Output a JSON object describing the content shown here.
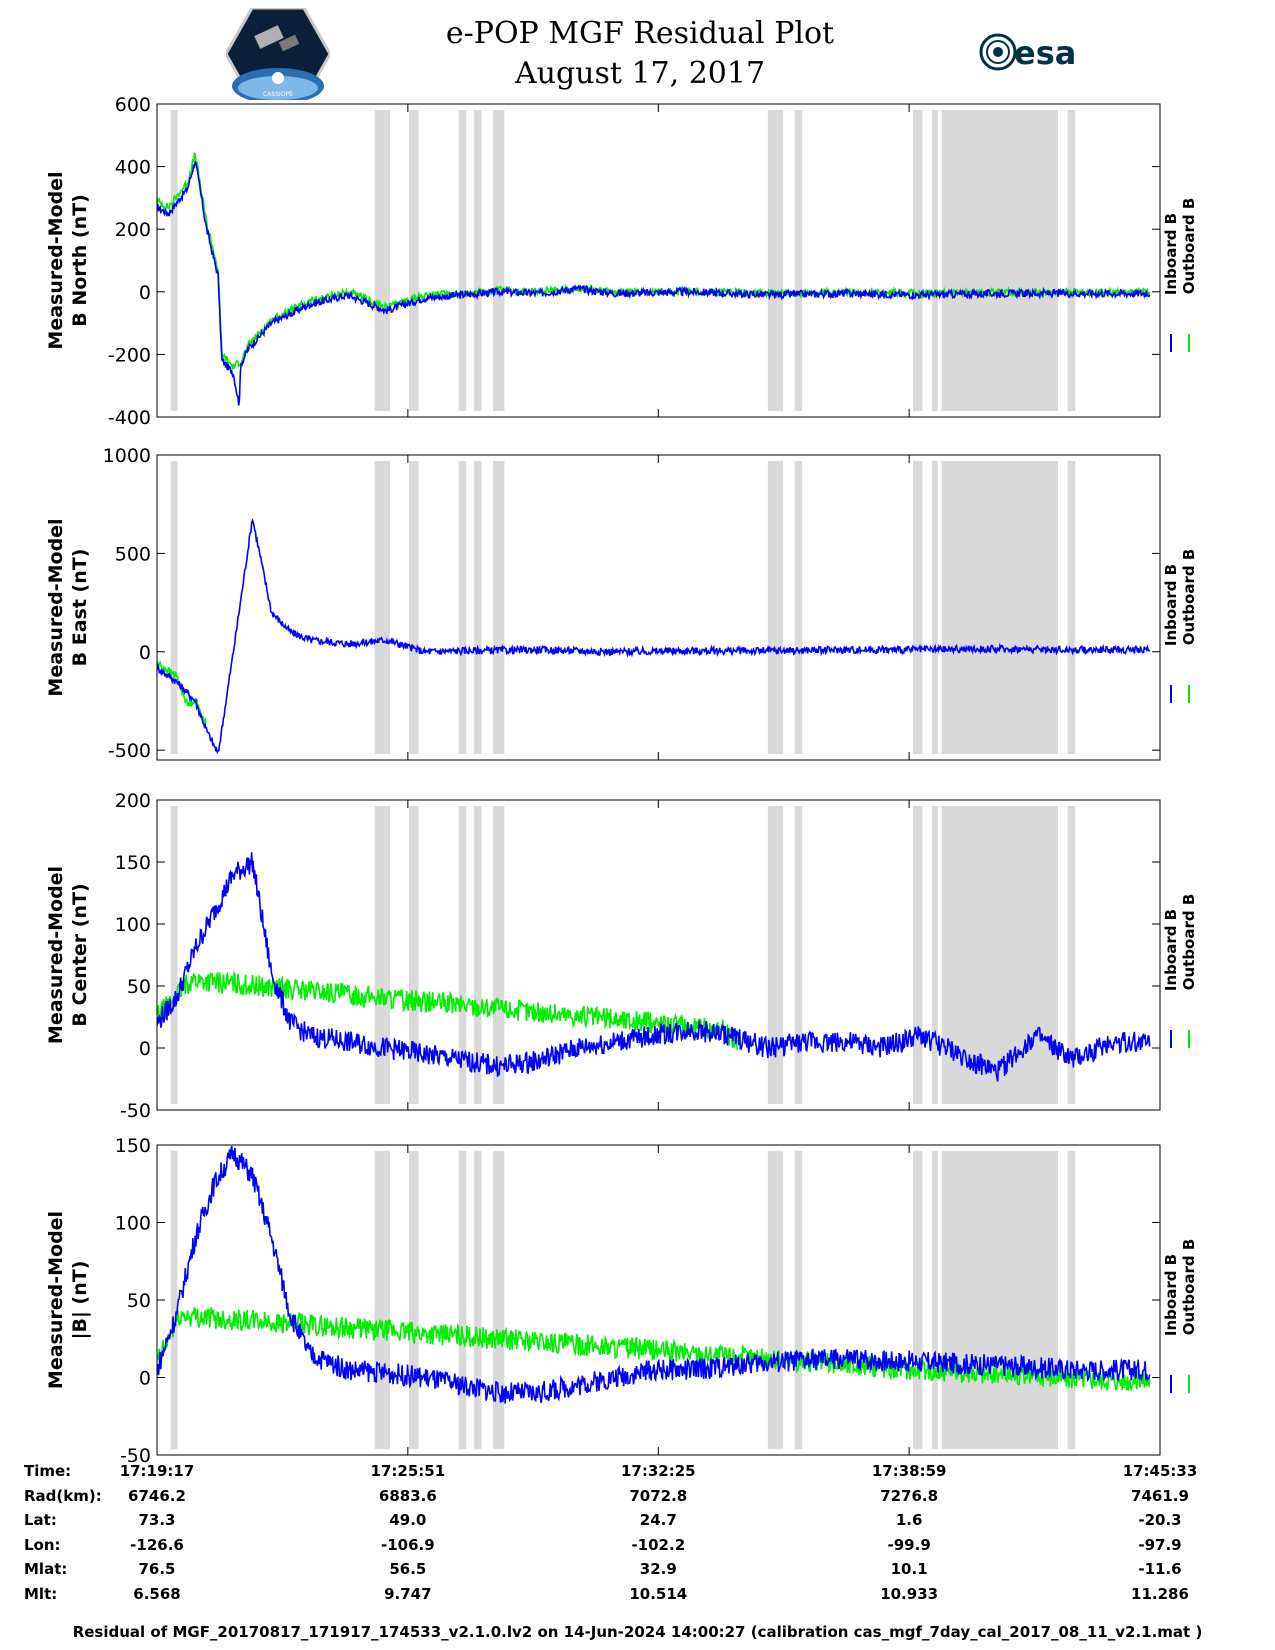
{
  "header": {
    "title_line1": "e-POP MGF Residual Plot",
    "title_line2": "August 17, 2017",
    "left_logo_text": "CASSIOPE",
    "right_logo_text": "esa"
  },
  "colors": {
    "inboard": "#0000ff",
    "outboard": "#00ee00",
    "shade": "#d9d9d9"
  },
  "chart_data": [
    {
      "type": "line",
      "ylabel": [
        "Measured-Model",
        "B North (nT)"
      ],
      "ylim": [
        -400,
        600
      ],
      "yticks": [
        "600",
        "400",
        "200",
        "0",
        "-200",
        "-400"
      ],
      "ytick_values": [
        600,
        400,
        200,
        0,
        -200,
        -400
      ],
      "legend": [
        "Inboard B",
        "Outboard B"
      ],
      "series": [
        {
          "name": "Inboard B",
          "x": [
            0,
            0.3,
            0.8,
            1.0,
            1.3,
            1.6,
            1.7,
            2.0,
            2.15,
            2.2,
            2.4,
            3.0,
            4.0,
            5.0,
            6.0,
            7.0,
            8.0,
            9.0,
            10.0,
            11.0,
            12.0,
            14.0,
            16.0,
            18.0,
            20.0,
            22.0,
            24.0,
            26.0
          ],
          "y": [
            270,
            250,
            330,
            420,
            200,
            50,
            -220,
            -260,
            -360,
            -230,
            -180,
            -100,
            -40,
            -10,
            -60,
            -20,
            -10,
            0,
            -5,
            10,
            -5,
            0,
            -10,
            -5,
            -10,
            -5,
            -5,
            -5
          ]
        },
        {
          "name": "Outboard B",
          "x": [
            0,
            0.3,
            0.8,
            1.0,
            1.3,
            1.6,
            1.7,
            2.0,
            2.2,
            2.4,
            3.0,
            4.0,
            5.0,
            6.0,
            7.0,
            8.0,
            9.0,
            10.0,
            11.0,
            12.0,
            14.0,
            16.0,
            18.0,
            20.0,
            22.0,
            24.0,
            26.0
          ],
          "y": [
            290,
            270,
            350,
            440,
            220,
            70,
            -200,
            -240,
            -220,
            -170,
            -90,
            -30,
            0,
            -50,
            -10,
            -5,
            5,
            0,
            12,
            -2,
            2,
            -5,
            -2,
            -5,
            -2,
            -2,
            -2
          ]
        }
      ]
    },
    {
      "type": "line",
      "ylabel": [
        "Measured-Model",
        "B East (nT)"
      ],
      "ylim": [
        -550,
        1000
      ],
      "yticks": [
        "1000",
        "500",
        "0",
        "-500"
      ],
      "ytick_values": [
        1000,
        500,
        0,
        -500
      ],
      "legend": [
        "Inboard B",
        "Outboard B"
      ],
      "series": [
        {
          "name": "Inboard B",
          "x": [
            0,
            0.5,
            1.0,
            1.3,
            1.6,
            2.0,
            2.5,
            3.0,
            3.5,
            4.0,
            5.0,
            6.0,
            7.0,
            8.0,
            10.0,
            12.0,
            14.0,
            16.0,
            18.0,
            20.0,
            22.0,
            24.0,
            26.0
          ],
          "y": [
            -80,
            -150,
            -250,
            -400,
            -520,
            0,
            680,
            200,
            100,
            60,
            40,
            60,
            0,
            5,
            10,
            0,
            5,
            5,
            10,
            10,
            15,
            10,
            10
          ]
        },
        {
          "name": "Outboard B",
          "x": [
            0,
            0.5,
            0.8,
            1.0,
            1.3
          ],
          "y": [
            -60,
            -120,
            -270,
            -240,
            -380
          ]
        }
      ]
    },
    {
      "type": "line",
      "ylabel": [
        "Measured-Model",
        "B Center (nT)"
      ],
      "ylim": [
        -50,
        200
      ],
      "yticks": [
        "200",
        "150",
        "100",
        "50",
        "0",
        "-50"
      ],
      "ytick_values": [
        200,
        150,
        100,
        50,
        0,
        -50
      ],
      "legend": [
        "Inboard B",
        "Outboard B"
      ],
      "series": [
        {
          "name": "Inboard B",
          "x": [
            0,
            0.5,
            1.0,
            1.5,
            2.0,
            2.5,
            3.0,
            3.5,
            4.0,
            5.0,
            6.0,
            7.0,
            8.0,
            9.0,
            10.0,
            11.0,
            12.0,
            13.0,
            14.0,
            15.0,
            16.0,
            17.0,
            18.0,
            19.0,
            20.0,
            21.0,
            22.0,
            23.0,
            24.0,
            25.0,
            26.0
          ],
          "y": [
            20,
            40,
            80,
            110,
            140,
            150,
            60,
            20,
            10,
            5,
            0,
            -5,
            -10,
            -15,
            -10,
            0,
            5,
            10,
            15,
            10,
            0,
            5,
            5,
            0,
            10,
            -5,
            -20,
            10,
            -10,
            5,
            5
          ]
        },
        {
          "name": "Outboard B",
          "x": [
            0,
            0.3,
            0.6,
            0.9,
            14.8,
            15.0,
            15.2
          ],
          "y": [
            25,
            35,
            45,
            55,
            15,
            10,
            0
          ]
        }
      ]
    },
    {
      "type": "line",
      "ylabel": [
        "Measured-Model",
        "|B| (nT)"
      ],
      "ylim": [
        -50,
        150
      ],
      "yticks": [
        "150",
        "100",
        "50",
        "0",
        "-50"
      ],
      "ytick_values": [
        150,
        100,
        50,
        0,
        -50
      ],
      "legend": [
        "Inboard B",
        "Outboard B"
      ],
      "series": [
        {
          "name": "Inboard B",
          "x": [
            0,
            0.5,
            1.0,
            1.5,
            2.0,
            2.5,
            3.0,
            3.5,
            4.0,
            5.0,
            6.0,
            7.0,
            8.0,
            9.0,
            10.0,
            11.0,
            12.0,
            13.0,
            14.0,
            16.0,
            18.0,
            20.0,
            22.0,
            24.0,
            26.0
          ],
          "y": [
            5,
            40,
            90,
            125,
            145,
            130,
            90,
            40,
            15,
            5,
            3,
            0,
            -5,
            -10,
            -10,
            -5,
            0,
            5,
            5,
            10,
            12,
            10,
            8,
            5,
            5
          ]
        },
        {
          "name": "Outboard B",
          "x": [
            0,
            0.3,
            0.6,
            20.0,
            22.0,
            24.0,
            26.0
          ],
          "y": [
            10,
            25,
            40,
            5,
            2,
            0,
            -2
          ]
        }
      ]
    }
  ],
  "x_axis": {
    "range_minutes": [
      0,
      26.27
    ],
    "tick_minutes": [
      0,
      6.57,
      13.13,
      19.7,
      26.27
    ]
  },
  "shaded_intervals_minutes": [
    [
      0.36,
      0.54
    ],
    [
      5.7,
      6.1
    ],
    [
      6.6,
      6.85
    ],
    [
      7.9,
      8.1
    ],
    [
      8.3,
      8.5
    ],
    [
      8.8,
      9.1
    ],
    [
      16.0,
      16.4
    ],
    [
      16.7,
      16.9
    ],
    [
      19.8,
      20.05
    ],
    [
      20.3,
      20.45
    ],
    [
      20.55,
      23.6
    ],
    [
      23.85,
      24.05
    ]
  ],
  "info_table": {
    "labels": [
      "Time:",
      "Rad(km):",
      "Lat:",
      "Lon:",
      "Mlat:",
      "Mlt:"
    ],
    "columns": [
      [
        "17:19:17",
        "6746.2",
        "73.3",
        "-126.6",
        "76.5",
        "6.568"
      ],
      [
        "17:25:51",
        "6883.6",
        "49.0",
        "-106.9",
        "56.5",
        "9.747"
      ],
      [
        "17:32:25",
        "7072.8",
        "24.7",
        "-102.2",
        "32.9",
        "10.514"
      ],
      [
        "17:38:59",
        "7276.8",
        "1.6",
        "-99.9",
        "10.1",
        "10.933"
      ],
      [
        "17:45:33",
        "7461.9",
        "-20.3",
        "-97.9",
        "-11.6",
        "11.286"
      ]
    ]
  },
  "footer": "Residual of MGF_20170817_171917_174533_v2.1.0.lv2 on 14-Jun-2024 14:00:27 (calibration cas_mgf_7day_cal_2017_08_11_v2.1.mat )"
}
